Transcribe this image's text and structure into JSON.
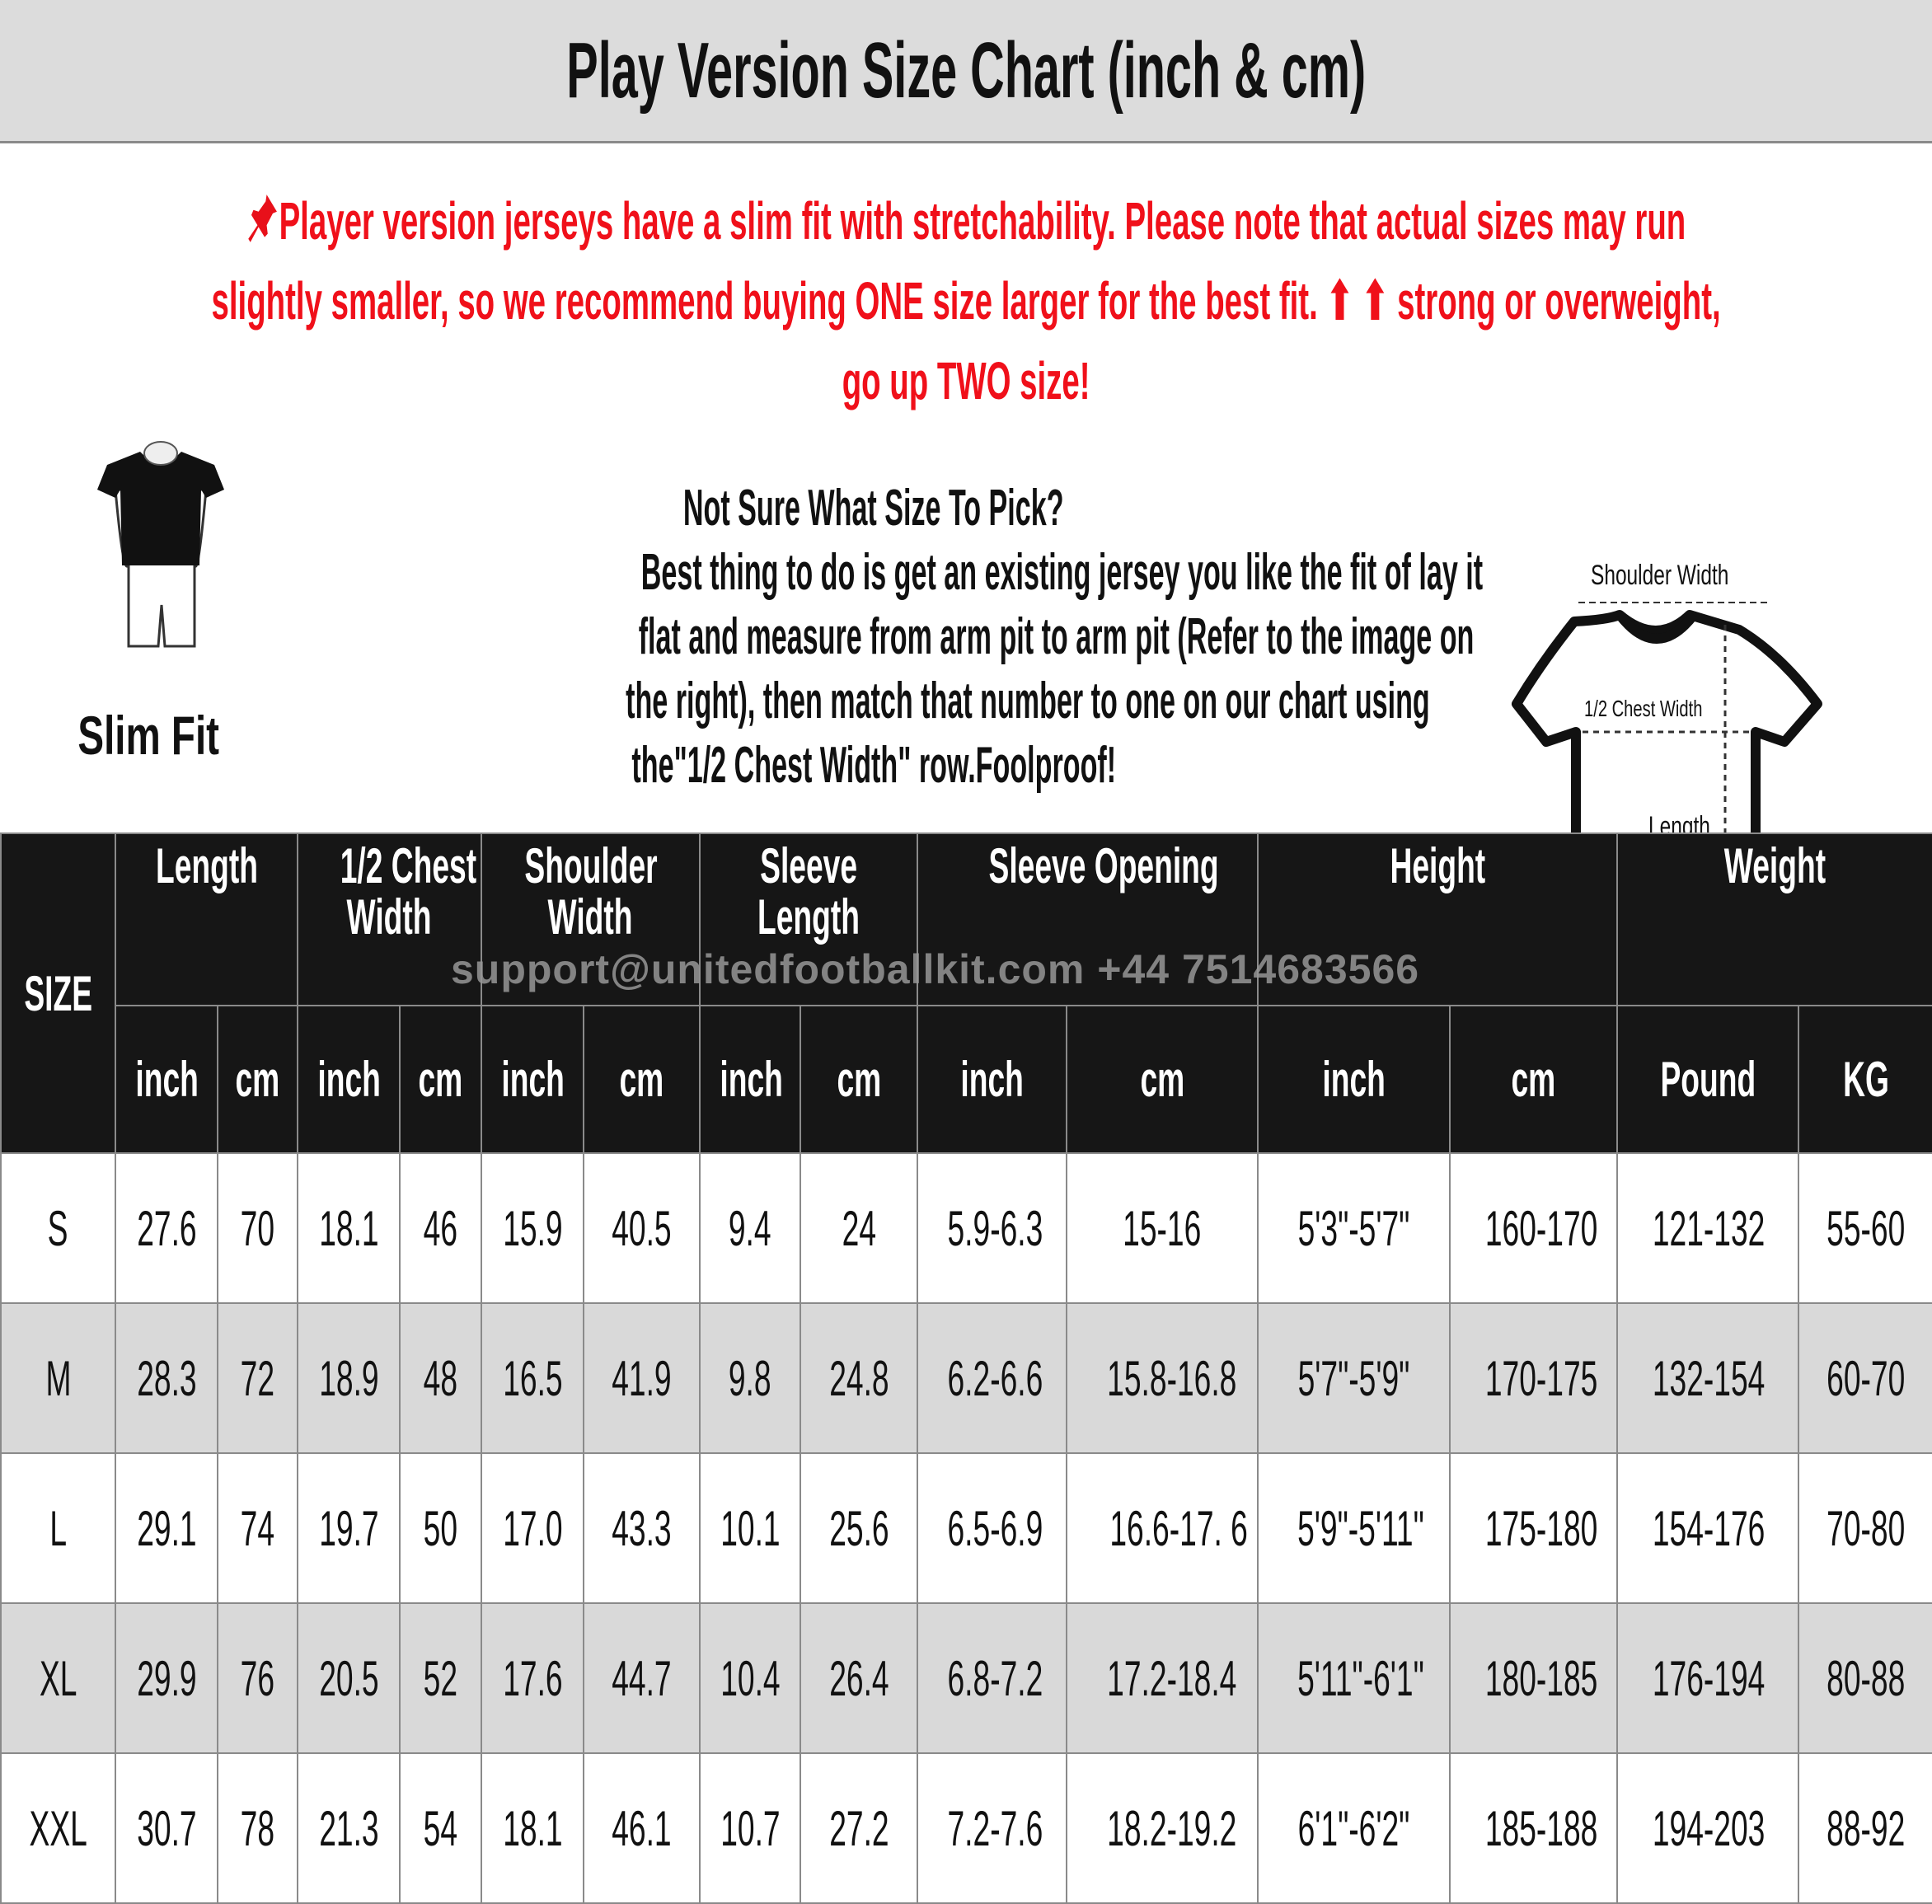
{
  "title": "Play Version Size Chart (inch & cm)",
  "notice": {
    "icon": "pushpin-icon",
    "line1": "Player version jerseys have a slim fit with stretchability. Please note that actual sizes may run",
    "line2": "slightly smaller, so we recommend buying ONE size larger for the best fit. ⬆ ⬆ strong or overweight,",
    "line3": "go up TWO size!",
    "color": "#f0101a"
  },
  "fit": {
    "label": "Slim Fit",
    "icon": "slim-fit-figure-icon"
  },
  "guide": {
    "lines": [
      "Not Sure What Size To Pick?",
      "Best thing to do is get an existing jersey you like the fit of lay it",
      "flat and measure from arm pit to arm pit (Refer to the image on",
      "the right), then match that number to one on our chart using",
      "the\"1/2 Chest Width\" row.Foolproof!"
    ]
  },
  "diagram": {
    "shoulder": "Shoulder Width",
    "chest": "1/2 Chest Width",
    "length": "Length"
  },
  "watermark": "support@unitedfootballkit.com   +44 7514683566",
  "table": {
    "size_header": "SIZE",
    "groups": [
      "Length",
      "1/2 Chest Width",
      "Shoulder Width",
      "Sleeve Length",
      "Sleeve Opening",
      "Height",
      "Weight"
    ],
    "group_lines": [
      [
        "Length"
      ],
      [
        "1/2 Chest",
        "Width"
      ],
      [
        "Shoulder",
        "Width"
      ],
      [
        "Sleeve",
        "Length"
      ],
      [
        "Sleeve Opening"
      ],
      [
        "Height"
      ],
      [
        "Weight"
      ]
    ],
    "units": [
      "inch",
      "cm",
      "inch",
      "cm",
      "inch",
      "cm",
      "inch",
      "cm",
      "inch",
      "cm",
      "inch",
      "cm",
      "Pound",
      "KG"
    ],
    "rows": [
      [
        "S",
        "27.6",
        "70",
        "18.1",
        "46",
        "15.9",
        "40.5",
        "9.4",
        "24",
        "5.9-6.3",
        "15-16",
        "5'3\"-5'7\"",
        "160-170",
        "121-132",
        "55-60"
      ],
      [
        "M",
        "28.3",
        "72",
        "18.9",
        "48",
        "16.5",
        "41.9",
        "9.8",
        "24.8",
        "6.2-6.6",
        "15.8-16.8",
        "5'7\"-5'9\"",
        "170-175",
        "132-154",
        "60-70"
      ],
      [
        "L",
        "29.1",
        "74",
        "19.7",
        "50",
        "17.0",
        "43.3",
        "10.1",
        "25.6",
        "6.5-6.9",
        "16.6-17. 6",
        "5'9\"-5'11\"",
        "175-180",
        "154-176",
        "70-80"
      ],
      [
        "XL",
        "29.9",
        "76",
        "20.5",
        "52",
        "17.6",
        "44.7",
        "10.4",
        "26.4",
        "6.8-7.2",
        "17.2-18.4",
        "5'11\"-6'1\"",
        "180-185",
        "176-194",
        "80-88"
      ],
      [
        "XXL",
        "30.7",
        "78",
        "21.3",
        "54",
        "18.1",
        "46.1",
        "10.7",
        "27.2",
        "7.2-7.6",
        "18.2-19.2",
        "6'1\"-6'2\"",
        "185-188",
        "194-203",
        "88-92"
      ]
    ]
  }
}
